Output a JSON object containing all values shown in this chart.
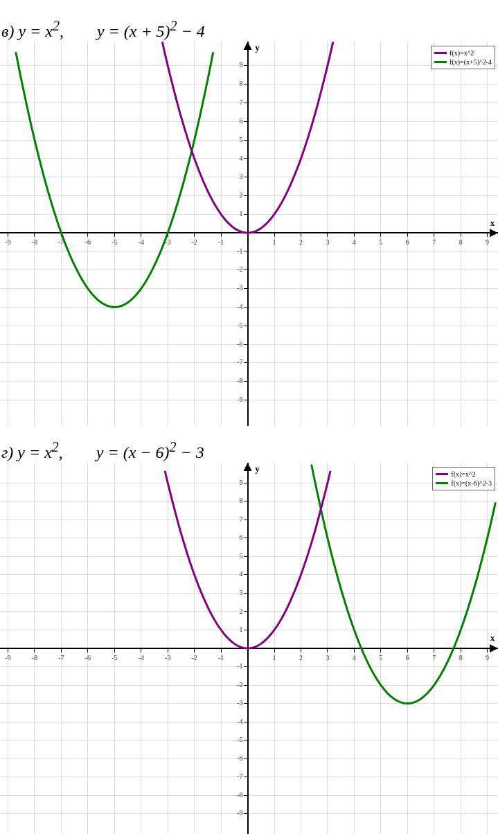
{
  "chart_data": [
    {
      "type": "line",
      "title": "в) y = x$^{2}$,        y = (x + 5)$^{2}$ − 4",
      "xlabel": "x",
      "ylabel": "y",
      "xlim": [
        -9.3,
        9.4
      ],
      "ylim": [
        -10.4,
        10.3
      ],
      "xticks": [
        -9,
        -8,
        -7,
        -6,
        -5,
        -4,
        -3,
        -2,
        -1,
        1,
        2,
        3,
        4,
        5,
        6,
        7,
        8,
        9
      ],
      "yticks": [
        -9,
        -8,
        -7,
        -6,
        -5,
        -4,
        -3,
        -2,
        -1,
        1,
        2,
        3,
        4,
        5,
        6,
        7,
        8,
        9
      ],
      "grid": true,
      "legend": "top right",
      "marker": "none",
      "line_style": "solid",
      "series": [
        {
          "name": "f(x)=x^2",
          "color": "#800080",
          "x": [
            -3.2,
            -3,
            -2.5,
            -2,
            -1.5,
            -1,
            -0.5,
            0,
            0.5,
            1,
            1.5,
            2,
            2.5,
            3,
            3.2
          ],
          "values": [
            10.24,
            9,
            6.25,
            4,
            2.25,
            1,
            0.25,
            0,
            0.25,
            1,
            2.25,
            4,
            6.25,
            9,
            10.24
          ]
        },
        {
          "name": "f(x)=(x+5)^2-4",
          "color": "#008000",
          "x": [
            -8.7,
            -8.5,
            -8,
            -7.5,
            -7,
            -6.5,
            -6,
            -5.5,
            -5,
            -4.5,
            -4,
            -3.5,
            -3,
            -2.5,
            -2,
            -1.5,
            -1.3
          ],
          "values": [
            9.69,
            8.25,
            5,
            2.25,
            0,
            -1.75,
            -3,
            -3.75,
            -4,
            -3.75,
            -3,
            -1.75,
            0,
            2.25,
            5,
            8.25,
            9.69
          ]
        }
      ]
    },
    {
      "type": "line",
      "title": "г) y = x$^{2}$,        y = (x − 6)$^{2}$ − 3",
      "xlabel": "x",
      "ylabel": "y",
      "xlim": [
        -9.3,
        9.4
      ],
      "ylim": [
        -10.1,
        10.1
      ],
      "xticks": [
        -9,
        -8,
        -7,
        -6,
        -5,
        -4,
        -3,
        -2,
        -1,
        1,
        2,
        3,
        4,
        5,
        6,
        7,
        8,
        9
      ],
      "yticks": [
        -9,
        -8,
        -7,
        -6,
        -5,
        -4,
        -3,
        -2,
        -1,
        1,
        2,
        3,
        4,
        5,
        6,
        7,
        8,
        9
      ],
      "grid": true,
      "legend": "top right",
      "marker": "none",
      "line_style": "solid",
      "series": [
        {
          "name": "f(x)=x^2",
          "color": "#800080",
          "x": [
            -3.1,
            -3,
            -2.5,
            -2,
            -1.5,
            -1,
            -0.5,
            0,
            0.5,
            1,
            1.5,
            2,
            2.5,
            3,
            3.1
          ],
          "values": [
            9.61,
            9,
            6.25,
            4,
            2.25,
            1,
            0.25,
            0,
            0.25,
            1,
            2.25,
            4,
            6.25,
            9,
            9.61
          ]
        },
        {
          "name": "f(x)=(x-6)^2-3",
          "color": "#008000",
          "x": [
            2.4,
            2.5,
            3,
            3.5,
            4,
            4.5,
            5,
            5.5,
            6,
            6.5,
            7,
            7.5,
            8,
            8.5,
            9,
            9.3
          ],
          "values": [
            9.96,
            9.25,
            6,
            3.25,
            1,
            -0.75,
            -2,
            -2.75,
            -3,
            -2.75,
            -2,
            -0.75,
            1,
            3.25,
            6,
            7.89
          ]
        }
      ]
    }
  ]
}
